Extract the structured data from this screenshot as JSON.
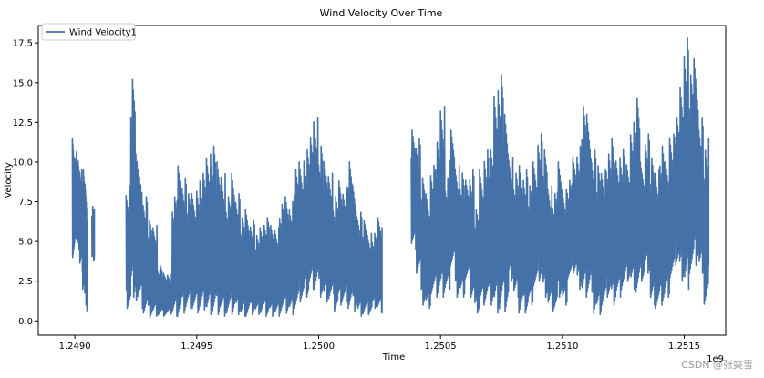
{
  "chart_data": {
    "type": "line",
    "title": "Wind Velocity Over Time",
    "xlabel": "Time",
    "ylabel": "Velocity",
    "x_offset_text": "1e9",
    "xlim": [
      1248850000,
      1251670000
    ],
    "ylim": [
      -0.9,
      18.6
    ],
    "x_ticks": [
      1249000000,
      1249500000,
      1250000000,
      1250500000,
      1251000000,
      1251500000
    ],
    "x_tick_labels": [
      "1.2490",
      "1.2495",
      "1.2500",
      "1.2505",
      "1.2510",
      "1.2515"
    ],
    "y_ticks": [
      0,
      2.5,
      5,
      7.5,
      10,
      12.5,
      15,
      17.5
    ],
    "y_tick_labels": [
      "0.0",
      "2.5",
      "5.0",
      "7.5",
      "10.0",
      "12.5",
      "15.0",
      "17.5"
    ],
    "grid": false,
    "legend_position": "upper-left",
    "series": [
      {
        "name": "Wind Velocity1",
        "color": "#4472a8",
        "segments": [
          {
            "x": [
              1248990000,
              1249000000,
              1249010000,
              1249020000,
              1249030000,
              1249040000,
              1249050000
            ],
            "y_low": [
              4.0,
              5.2,
              4.5,
              3.5,
              2.0,
              1.0,
              0.6
            ],
            "y_high": [
              11.5,
              10.8,
              10.2,
              9.5,
              9.5,
              8.6,
              6.5
            ]
          },
          {
            "x": [
              1249070000,
              1249080000
            ],
            "y_low": [
              3.8,
              4.0
            ],
            "y_high": [
              7.2,
              7.0
            ]
          },
          {
            "x": [
              1249210000,
              1249230000,
              1249250000,
              1249280000,
              1249300000,
              1249320000,
              1249340000,
              1249360000,
              1249380000,
              1249400000,
              1249420000,
              1249440000,
              1249460000,
              1249480000,
              1249500000,
              1249520000,
              1249540000,
              1249560000,
              1249580000,
              1249600000,
              1249620000,
              1249640000,
              1249660000,
              1249680000,
              1249700000,
              1249720000,
              1249740000,
              1249760000,
              1249780000,
              1249800000,
              1249820000,
              1249840000,
              1249860000,
              1249880000,
              1249900000,
              1249920000,
              1249940000,
              1249960000,
              1249980000,
              1250000000,
              1250020000,
              1250040000,
              1250060000,
              1250080000,
              1250100000,
              1250120000,
              1250140000,
              1250160000,
              1250180000,
              1250200000,
              1250220000,
              1250240000,
              1250260000
            ],
            "y_low": [
              0.8,
              1.5,
              0.8,
              0.5,
              0.2,
              0.3,
              0.3,
              0.3,
              0.4,
              0.3,
              0.3,
              0.5,
              0.8,
              0.6,
              0.5,
              0.7,
              0.4,
              0.4,
              0.4,
              0.3,
              0.3,
              0.4,
              0.4,
              0.3,
              0.3,
              0.4,
              0.4,
              0.4,
              0.3,
              0.3,
              0.3,
              0.5,
              0.5,
              0.4,
              0.6,
              1.2,
              1.5,
              2.0,
              2.0,
              1.5,
              1.2,
              1.2,
              0.6,
              1.0,
              1.2,
              0.8,
              0.6,
              0.3,
              0.3,
              0.4,
              0.8,
              0.6,
              0.5
            ],
            "y_high": [
              8.5,
              15.2,
              10.5,
              8.0,
              6.5,
              6.0,
              3.5,
              3.0,
              3.0,
              8.0,
              10.0,
              9.0,
              8.0,
              8.0,
              9.0,
              9.5,
              10.5,
              11.0,
              10.0,
              9.5,
              8.0,
              9.5,
              8.0,
              6.5,
              7.0,
              6.5,
              5.5,
              6.0,
              6.5,
              6.0,
              6.0,
              7.5,
              8.0,
              7.5,
              9.5,
              10.0,
              11.0,
              11.8,
              12.8,
              11.0,
              10.0,
              9.5,
              8.0,
              9.0,
              8.5,
              10.0,
              8.5,
              7.0,
              6.5,
              5.5,
              5.5,
              6.5,
              6.0
            ]
          },
          {
            "x": [
              1250380000,
              1250400000,
              1250420000,
              1250440000,
              1250460000,
              1250480000,
              1250500000,
              1250520000,
              1250540000,
              1250560000,
              1250580000,
              1250600000,
              1250620000,
              1250640000,
              1250660000,
              1250680000,
              1250700000,
              1250720000,
              1250740000,
              1250760000,
              1250780000,
              1250800000,
              1250820000,
              1250840000,
              1250860000,
              1250880000,
              1250900000,
              1250920000,
              1250940000,
              1250960000,
              1250980000,
              1251000000,
              1251020000,
              1251040000,
              1251060000,
              1251080000,
              1251100000,
              1251120000,
              1251140000,
              1251160000,
              1251180000,
              1251200000,
              1251220000,
              1251240000,
              1251260000,
              1251280000,
              1251300000,
              1251320000,
              1251340000,
              1251360000,
              1251380000,
              1251400000,
              1251420000,
              1251440000,
              1251460000,
              1251480000,
              1251500000,
              1251520000,
              1251540000,
              1251560000,
              1251580000,
              1251600000
            ],
            "y_low": [
              4.5,
              3.0,
              1.0,
              0.8,
              1.5,
              1.5,
              1.5,
              2.0,
              3.5,
              1.5,
              1.5,
              2.5,
              1.5,
              0.5,
              1.0,
              1.2,
              1.0,
              0.5,
              0.4,
              0.6,
              2.5,
              1.5,
              0.5,
              0.5,
              1.0,
              2.0,
              2.5,
              1.5,
              0.8,
              0.6,
              1.5,
              1.0,
              2.5,
              3.0,
              2.0,
              1.5,
              1.8,
              0.5,
              0.4,
              0.8,
              1.5,
              1.0,
              1.5,
              2.0,
              2.5,
              2.0,
              1.5,
              2.5,
              3.0,
              1.0,
              0.8,
              1.0,
              1.5,
              2.5,
              3.5,
              2.5,
              2.0,
              3.0,
              3.5,
              3.0,
              0.8,
              3.5
            ],
            "y_high": [
              12.2,
              11.5,
              9.0,
              8.0,
              10.0,
              11.5,
              13.5,
              9.0,
              12.0,
              10.0,
              9.5,
              9.0,
              9.5,
              7.0,
              9.5,
              11.0,
              11.0,
              14.5,
              15.5,
              13.0,
              10.5,
              9.5,
              10.0,
              9.5,
              8.5,
              10.0,
              12.0,
              11.0,
              8.5,
              8.0,
              10.0,
              8.5,
              9.0,
              10.5,
              11.0,
              13.5,
              13.0,
              11.0,
              10.0,
              9.5,
              10.5,
              11.5,
              10.5,
              11.0,
              10.0,
              12.5,
              14.0,
              10.0,
              12.0,
              10.5,
              9.5,
              11.0,
              10.0,
              12.0,
              13.0,
              15.0,
              17.8,
              15.5,
              16.5,
              13.0,
              11.0,
              11.5
            ]
          }
        ]
      }
    ]
  },
  "watermark": "CSDN @张爽雪"
}
